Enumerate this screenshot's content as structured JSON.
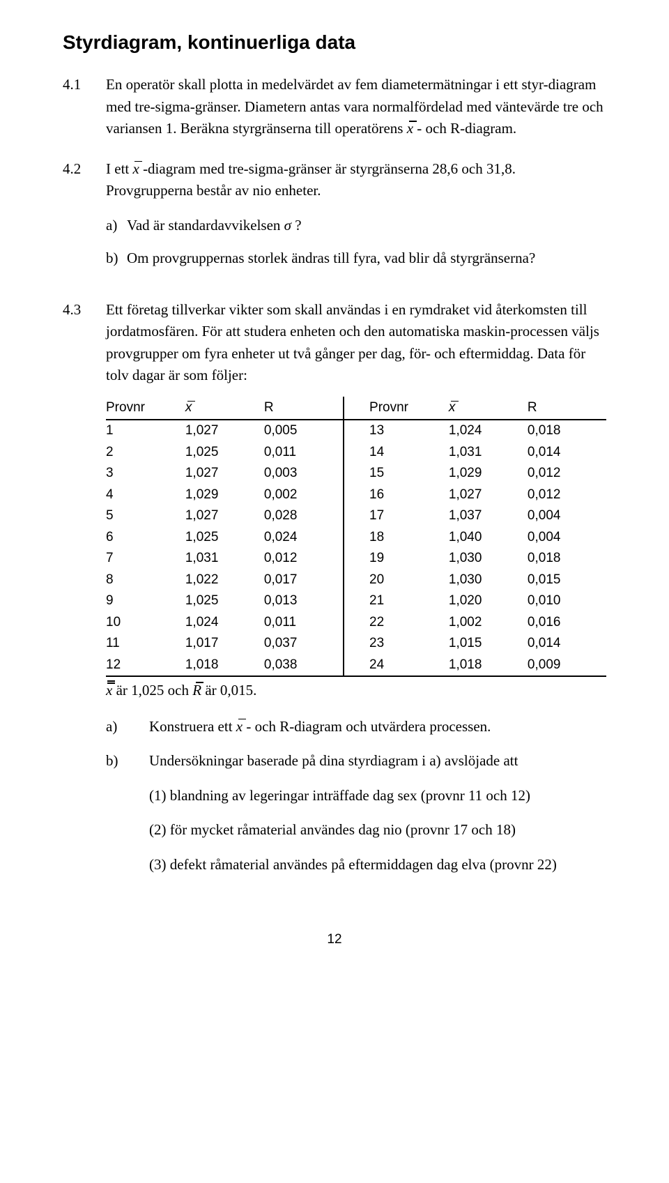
{
  "title": "Styrdiagram, kontinuerliga data",
  "q41": {
    "num": "4.1",
    "text_a": "En operatör skall plotta in medelvärdet av fem diametermätningar i ett styr-diagram med tre-sigma-gränser. Diametern antas vara normalfördelad med väntevärde tre och variansen 1. Beräkna styrgränserna till operatörens ",
    "text_b": " - och R-diagram."
  },
  "q42": {
    "num": "4.2",
    "text_a": "I ett ",
    "text_b": " -diagram med tre-sigma-gränser är styrgränserna 28,6 och 31,8. Provgrupperna består av nio enheter.",
    "a_label": "a)",
    "a_text": "Vad är standardavvikelsen ",
    "a_q": " ?",
    "b_label": "b)",
    "b_text": "Om provgruppernas storlek ändras till fyra, vad blir då styrgränserna?"
  },
  "q43": {
    "num": "4.3",
    "intro": "Ett företag tillverkar vikter som skall användas i en rymdraket vid återkomsten till jordatmosfären. För att studera enheten och den automatiska maskin-processen väljs provgrupper om fyra enheter ut två gånger per dag, för- och eftermiddag. Data för tolv dagar är som följer:",
    "headers": {
      "provnr": "Provnr",
      "x": "x",
      "r": "R"
    },
    "rows": [
      [
        "1",
        "1,027",
        "0,005",
        "13",
        "1,024",
        "0,018"
      ],
      [
        "2",
        "1,025",
        "0,011",
        "14",
        "1,031",
        "0,014"
      ],
      [
        "3",
        "1,027",
        "0,003",
        "15",
        "1,029",
        "0,012"
      ],
      [
        "4",
        "1,029",
        "0,002",
        "16",
        "1,027",
        "0,012"
      ],
      [
        "5",
        "1,027",
        "0,028",
        "17",
        "1,037",
        "0,004"
      ],
      [
        "6",
        "1,025",
        "0,024",
        "18",
        "1,040",
        "0,004"
      ],
      [
        "7",
        "1,031",
        "0,012",
        "19",
        "1,030",
        "0,018"
      ],
      [
        "8",
        "1,022",
        "0,017",
        "20",
        "1,030",
        "0,015"
      ],
      [
        "9",
        "1,025",
        "0,013",
        "21",
        "1,020",
        "0,010"
      ],
      [
        "10",
        "1,024",
        "0,011",
        "22",
        "1,002",
        "0,016"
      ],
      [
        "11",
        "1,017",
        "0,037",
        "23",
        "1,015",
        "0,014"
      ],
      [
        "12",
        "1,018",
        "0,038",
        "24",
        "1,018",
        "0,009"
      ]
    ],
    "avg_prefix": " är ",
    "avg_x": "1,025",
    "avg_mid": " och ",
    "avg_r_prefix": " är ",
    "avg_r": "0,015.",
    "a_label": "a)",
    "a_text_a": "Konstruera ett ",
    "a_text_b": " - och R-diagram och utvärdera processen.",
    "b_label": "b)",
    "b_text": "Undersökningar baserade på dina styrdiagram i a) avslöjade att",
    "p1": "(1) blandning av legeringar inträffade dag sex (provnr 11 och 12)",
    "p2": "(2) för mycket råmaterial användes dag nio (provnr 17 och 18)",
    "p3": "(3) defekt råmaterial användes på eftermiddagen dag elva (provnr 22)"
  },
  "page_num": "12"
}
